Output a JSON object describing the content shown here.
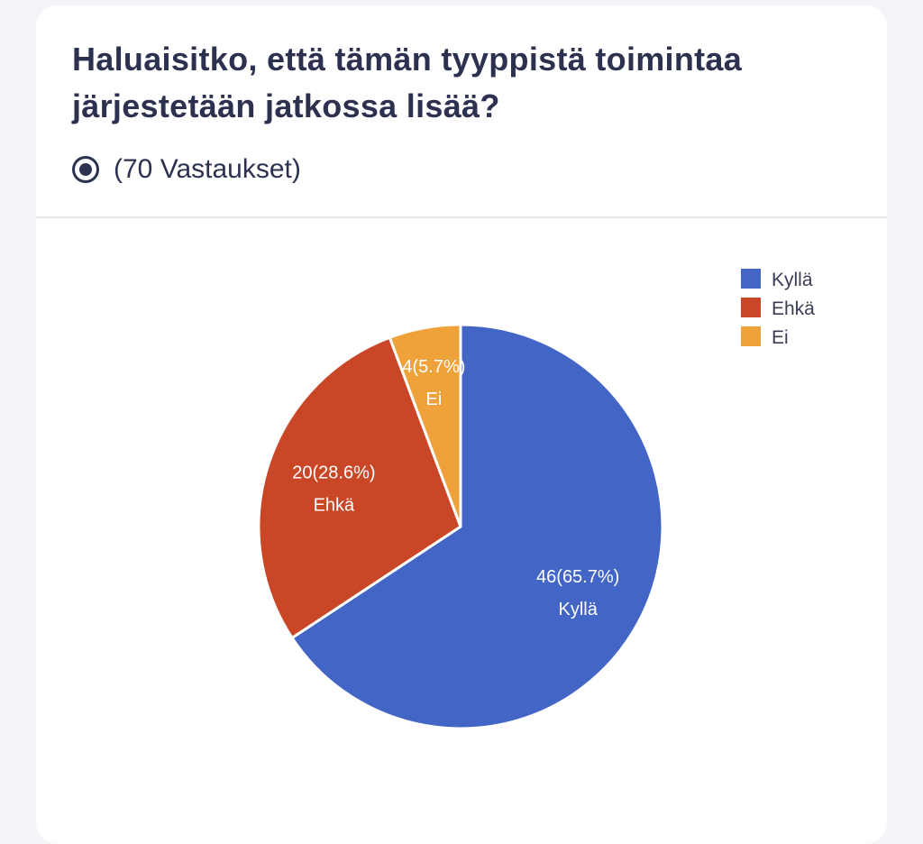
{
  "question": {
    "title": "Haluaisitko, että tämän tyyppistä toimintaa järjestetään jatkossa lisää?",
    "responses_label": "(70 Vastaukset)",
    "icon": "radio-selected-icon"
  },
  "colors": {
    "kylla": "#4265c6",
    "ehka": "#c94727",
    "ei": "#efa13a"
  },
  "chart_data": {
    "type": "pie",
    "categories": [
      "Kyllä",
      "Ehkä",
      "Ei"
    ],
    "values": [
      46,
      20,
      4
    ],
    "percents": [
      "65.7%",
      "28.6%",
      "5.7%"
    ],
    "labels": [
      "46(65.7%)",
      "20(28.6%)",
      "4(5.7%)"
    ],
    "colors": [
      "#4265c6",
      "#c94727",
      "#efa13a"
    ],
    "legend_position": "top-right",
    "start_angle_deg": 0,
    "direction": "clockwise"
  }
}
